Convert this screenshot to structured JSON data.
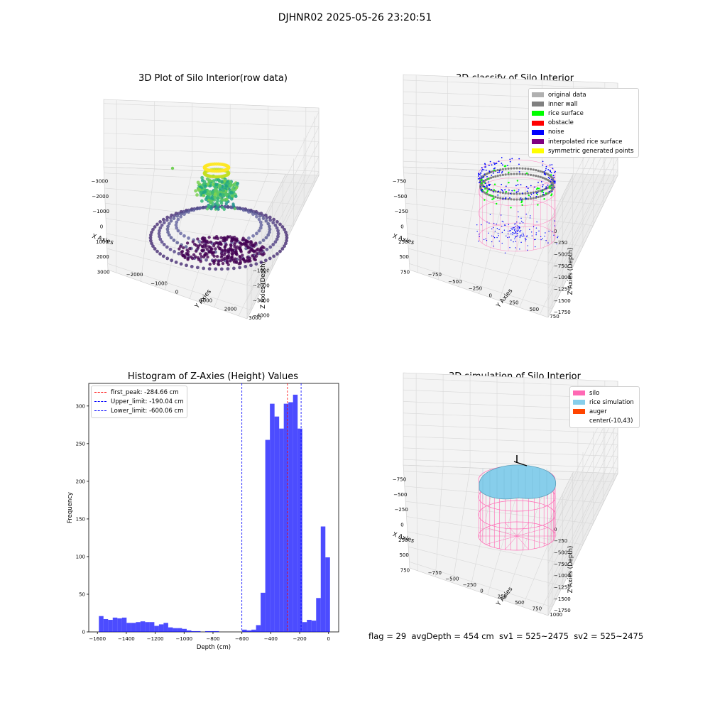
{
  "suptitle": "DJHNR02 2025-05-26 23:20:51",
  "status_text": "flag = 29  avgDepth = 454 cm  sv1 = 525~2475  sv2 = 525~2475",
  "colors": {
    "hist": "#0000ff",
    "first_peak": "#ff0000",
    "limit": "#0000ff",
    "silo": "#ff69b4",
    "rice_sim": "#87ceeb",
    "auger": "#ff4500"
  },
  "chart_data": [
    {
      "type": "scatter",
      "title": "3D Plot of Silo Interior(row data)",
      "xlabel": "X Axies",
      "ylabel": "Y Axies",
      "zlabel": "Z Axies (Depth)",
      "x_ticks": [
        "−3000",
        "−2000",
        "−1000",
        "0",
        "1000",
        "2000",
        "3000"
      ],
      "y_ticks": [
        "−2000",
        "−1000",
        "0",
        "1000",
        "2000",
        "3000"
      ],
      "z_ticks": [
        "0",
        "−1000",
        "−2000",
        "−3000",
        "−4000"
      ],
      "xlim": [
        -3000,
        3000
      ],
      "ylim": [
        -2500,
        3000
      ],
      "zlim": [
        -4600,
        0
      ],
      "colormap": "viridis"
    },
    {
      "type": "scatter",
      "title": "3D classify of Silo Interior",
      "xlabel": "X Axies",
      "ylabel": "Y Axies",
      "zlabel": "Z Axies (Depth)",
      "x_ticks": [
        "−750",
        "−500",
        "−250",
        "0",
        "250",
        "500",
        "750"
      ],
      "y_ticks": [
        "−750",
        "−500",
        "−250",
        "0",
        "250",
        "500",
        "750"
      ],
      "z_ticks": [
        "0",
        "−250",
        "−500",
        "−750",
        "−1000",
        "−1250",
        "−1500",
        "−1750"
      ],
      "legend": [
        {
          "label": "original data",
          "color": "#b0b0b0"
        },
        {
          "label": "inner wall",
          "color": "#808080"
        },
        {
          "label": "rice surface",
          "color": "#00ff00"
        },
        {
          "label": "obstacle",
          "color": "#ff0000"
        },
        {
          "label": "noise",
          "color": "#0000ff"
        },
        {
          "label": "interpolated rice surface",
          "color": "#800080"
        },
        {
          "label": "symmetric generated points",
          "color": "#ffff00"
        }
      ]
    },
    {
      "type": "bar",
      "title": "Histogram of Z-Axies (Height) Values",
      "xlabel": "Depth (cm)",
      "ylabel": "Frequency",
      "xlim": [
        -1660,
        70
      ],
      "ylim": [
        0,
        330
      ],
      "x_ticks": [
        -1600,
        -1400,
        -1200,
        -1000,
        -800,
        -600,
        -400,
        -200,
        0
      ],
      "x_tick_labels": [
        "−1600",
        "−1400",
        "−1200",
        "−1000",
        "−800",
        "−600",
        "−400",
        "−200",
        "0"
      ],
      "y_ticks": [
        0,
        50,
        100,
        150,
        200,
        250,
        300
      ],
      "bin_start": -1590,
      "bin_width": 32,
      "values": [
        21,
        17,
        16,
        19,
        18,
        19,
        12,
        12,
        13,
        14,
        13,
        13,
        8,
        10,
        12,
        6,
        5,
        5,
        4,
        2,
        1,
        1,
        0,
        1,
        1,
        1,
        0,
        0,
        0,
        0,
        0,
        3,
        2,
        3,
        9,
        52,
        255,
        303,
        286,
        270,
        303,
        305,
        315,
        270,
        13,
        16,
        15,
        45,
        140,
        99
      ],
      "lines": [
        {
          "label": "first_peak: -284.66 cm",
          "x": -284.66,
          "color": "#ff0000"
        },
        {
          "label": "Upper_limit: -190.04 cm",
          "x": -190.04,
          "color": "#0000ff"
        },
        {
          "label": "Lower_limit: -600.06 cm",
          "x": -600.06,
          "color": "#0000ff"
        }
      ]
    },
    {
      "type": "scatter",
      "title": "3D simulation of Silo Interior",
      "xlabel": "X Axies",
      "ylabel": "Y Axies",
      "zlabel": "Z Axies (Depth)",
      "x_ticks": [
        "−750",
        "−500",
        "−250",
        "0",
        "250",
        "500",
        "750"
      ],
      "y_ticks": [
        "−750",
        "−500",
        "−250",
        "0",
        "250",
        "500",
        "750",
        "1000"
      ],
      "z_ticks": [
        "0",
        "−250",
        "−500",
        "−750",
        "−1000",
        "−1250",
        "−1500",
        "−1750"
      ],
      "legend": [
        {
          "label": "silo",
          "color": "#ff69b4"
        },
        {
          "label": "rice simulation",
          "color": "#87ceeb"
        },
        {
          "label": "auger",
          "color": "#ff4500"
        },
        {
          "label": "center(-10,43)",
          "color": "#ffffff"
        }
      ]
    }
  ]
}
